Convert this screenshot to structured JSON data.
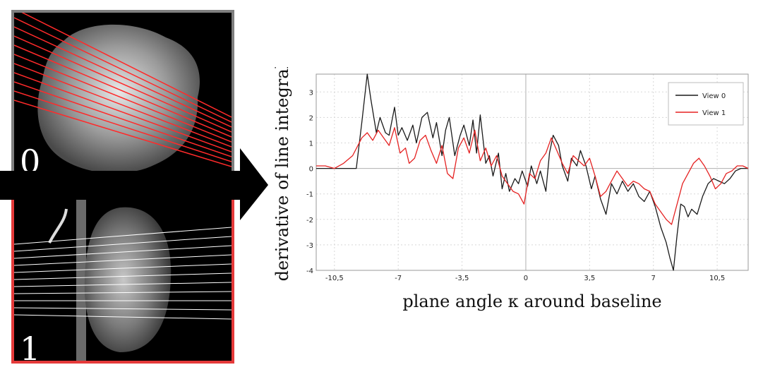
{
  "views": [
    {
      "number": "0",
      "frame_color": "#7f7f7f",
      "line_color": "#ff2a2a"
    },
    {
      "number": "1",
      "frame_color": "#e53a3a",
      "line_color": "#ffffff"
    }
  ],
  "chart_data": {
    "type": "line",
    "xlabel": "plane angle κ around baseline",
    "ylabel": "derivative of line integral",
    "xlim": [
      -11.5,
      12.2
    ],
    "ylim": [
      -4,
      3.7
    ],
    "xticks": [
      -10.5,
      -7,
      -3.5,
      0,
      3.5,
      7,
      10.5
    ],
    "xtick_labels": [
      "-10,5",
      "-7",
      "-3,5",
      "0",
      "3,5",
      "7",
      "10,5"
    ],
    "yticks": [
      -4,
      -3,
      -2,
      -1,
      0,
      1,
      2,
      3
    ],
    "yticks_labels": [
      "-4",
      "-3",
      "-2",
      "-1",
      "0",
      "1",
      "2",
      "3"
    ],
    "grid": true,
    "legend_position": "top-right",
    "series": [
      {
        "name": "View 0",
        "color": "#1a1a1a",
        "x": [
          -11.5,
          -10.5,
          -9.9,
          -9.3,
          -9.0,
          -8.7,
          -8.5,
          -8.2,
          -8.0,
          -7.7,
          -7.5,
          -7.2,
          -7.0,
          -6.8,
          -6.5,
          -6.2,
          -6.0,
          -5.7,
          -5.4,
          -5.1,
          -4.9,
          -4.6,
          -4.4,
          -4.2,
          -3.9,
          -3.6,
          -3.4,
          -3.1,
          -2.9,
          -2.7,
          -2.5,
          -2.2,
          -2.0,
          -1.8,
          -1.5,
          -1.3,
          -1.1,
          -0.9,
          -0.6,
          -0.4,
          -0.2,
          0.1,
          0.3,
          0.6,
          0.8,
          1.1,
          1.3,
          1.5,
          1.8,
          2.0,
          2.3,
          2.5,
          2.8,
          3.0,
          3.3,
          3.6,
          3.8,
          4.1,
          4.4,
          4.7,
          5.0,
          5.3,
          5.6,
          5.9,
          6.2,
          6.5,
          6.8,
          7.1,
          7.4,
          7.7,
          7.9,
          8.1,
          8.3,
          8.5,
          8.7,
          8.9,
          9.1,
          9.4,
          9.7,
          10.0,
          10.3,
          10.6,
          10.9,
          11.2,
          11.5,
          11.8,
          12.2
        ],
        "y": [
          0,
          0,
          0,
          0,
          1.8,
          3.7,
          2.7,
          1.4,
          2.0,
          1.4,
          1.3,
          2.4,
          1.3,
          1.6,
          1.1,
          1.7,
          1.0,
          2.0,
          2.2,
          1.2,
          1.8,
          0.5,
          1.5,
          2.0,
          0.5,
          1.3,
          1.7,
          0.9,
          1.9,
          0.6,
          2.1,
          0.2,
          0.5,
          -0.3,
          0.6,
          -0.8,
          -0.2,
          -0.9,
          -0.4,
          -0.6,
          -0.1,
          -0.7,
          0.1,
          -0.6,
          -0.1,
          -0.9,
          0.6,
          1.3,
          0.9,
          0.1,
          -0.5,
          0.4,
          0.1,
          0.7,
          0.1,
          -0.8,
          -0.3,
          -1.2,
          -1.8,
          -0.6,
          -1.0,
          -0.5,
          -0.9,
          -0.6,
          -1.1,
          -1.3,
          -0.9,
          -1.5,
          -2.3,
          -2.9,
          -3.5,
          -4.0,
          -2.6,
          -1.4,
          -1.5,
          -1.9,
          -1.6,
          -1.8,
          -1.1,
          -0.6,
          -0.4,
          -0.5,
          -0.6,
          -0.4,
          -0.1,
          0,
          0
        ]
      },
      {
        "name": "View 1",
        "color": "#e52222",
        "x": [
          -11.5,
          -11.0,
          -10.5,
          -10.0,
          -9.5,
          -9.0,
          -8.7,
          -8.4,
          -8.1,
          -7.8,
          -7.5,
          -7.2,
          -6.9,
          -6.6,
          -6.4,
          -6.1,
          -5.8,
          -5.5,
          -5.2,
          -4.9,
          -4.6,
          -4.3,
          -4.0,
          -3.7,
          -3.4,
          -3.1,
          -2.8,
          -2.5,
          -2.2,
          -1.9,
          -1.6,
          -1.3,
          -1.0,
          -0.7,
          -0.4,
          -0.1,
          0.2,
          0.5,
          0.8,
          1.1,
          1.4,
          1.7,
          2.0,
          2.3,
          2.6,
          2.9,
          3.2,
          3.5,
          3.8,
          4.1,
          4.4,
          4.7,
          5.0,
          5.3,
          5.6,
          5.9,
          6.2,
          6.5,
          6.8,
          7.1,
          7.4,
          7.7,
          8.0,
          8.3,
          8.6,
          8.9,
          9.2,
          9.5,
          9.8,
          10.1,
          10.4,
          10.7,
          11.0,
          11.3,
          11.6,
          11.9,
          12.2
        ],
        "y": [
          0.1,
          0.1,
          0,
          0.2,
          0.5,
          1.2,
          1.4,
          1.1,
          1.5,
          1.2,
          0.9,
          1.6,
          0.6,
          0.8,
          0.2,
          0.4,
          1.1,
          1.3,
          0.7,
          0.2,
          0.9,
          -0.2,
          -0.4,
          0.8,
          1.2,
          0.6,
          1.5,
          0.3,
          0.8,
          0.1,
          0.5,
          -0.3,
          -0.6,
          -0.9,
          -1.0,
          -1.4,
          -0.2,
          -0.4,
          0.3,
          0.6,
          1.2,
          0.7,
          0.2,
          -0.2,
          0.5,
          0.3,
          0.1,
          0.4,
          -0.3,
          -1.1,
          -0.9,
          -0.5,
          -0.1,
          -0.4,
          -0.7,
          -0.5,
          -0.6,
          -0.8,
          -0.9,
          -1.4,
          -1.7,
          -2.0,
          -2.2,
          -1.4,
          -0.6,
          -0.2,
          0.2,
          0.4,
          0.1,
          -0.3,
          -0.8,
          -0.6,
          -0.2,
          -0.1,
          0.1,
          0.1,
          0
        ]
      }
    ]
  }
}
